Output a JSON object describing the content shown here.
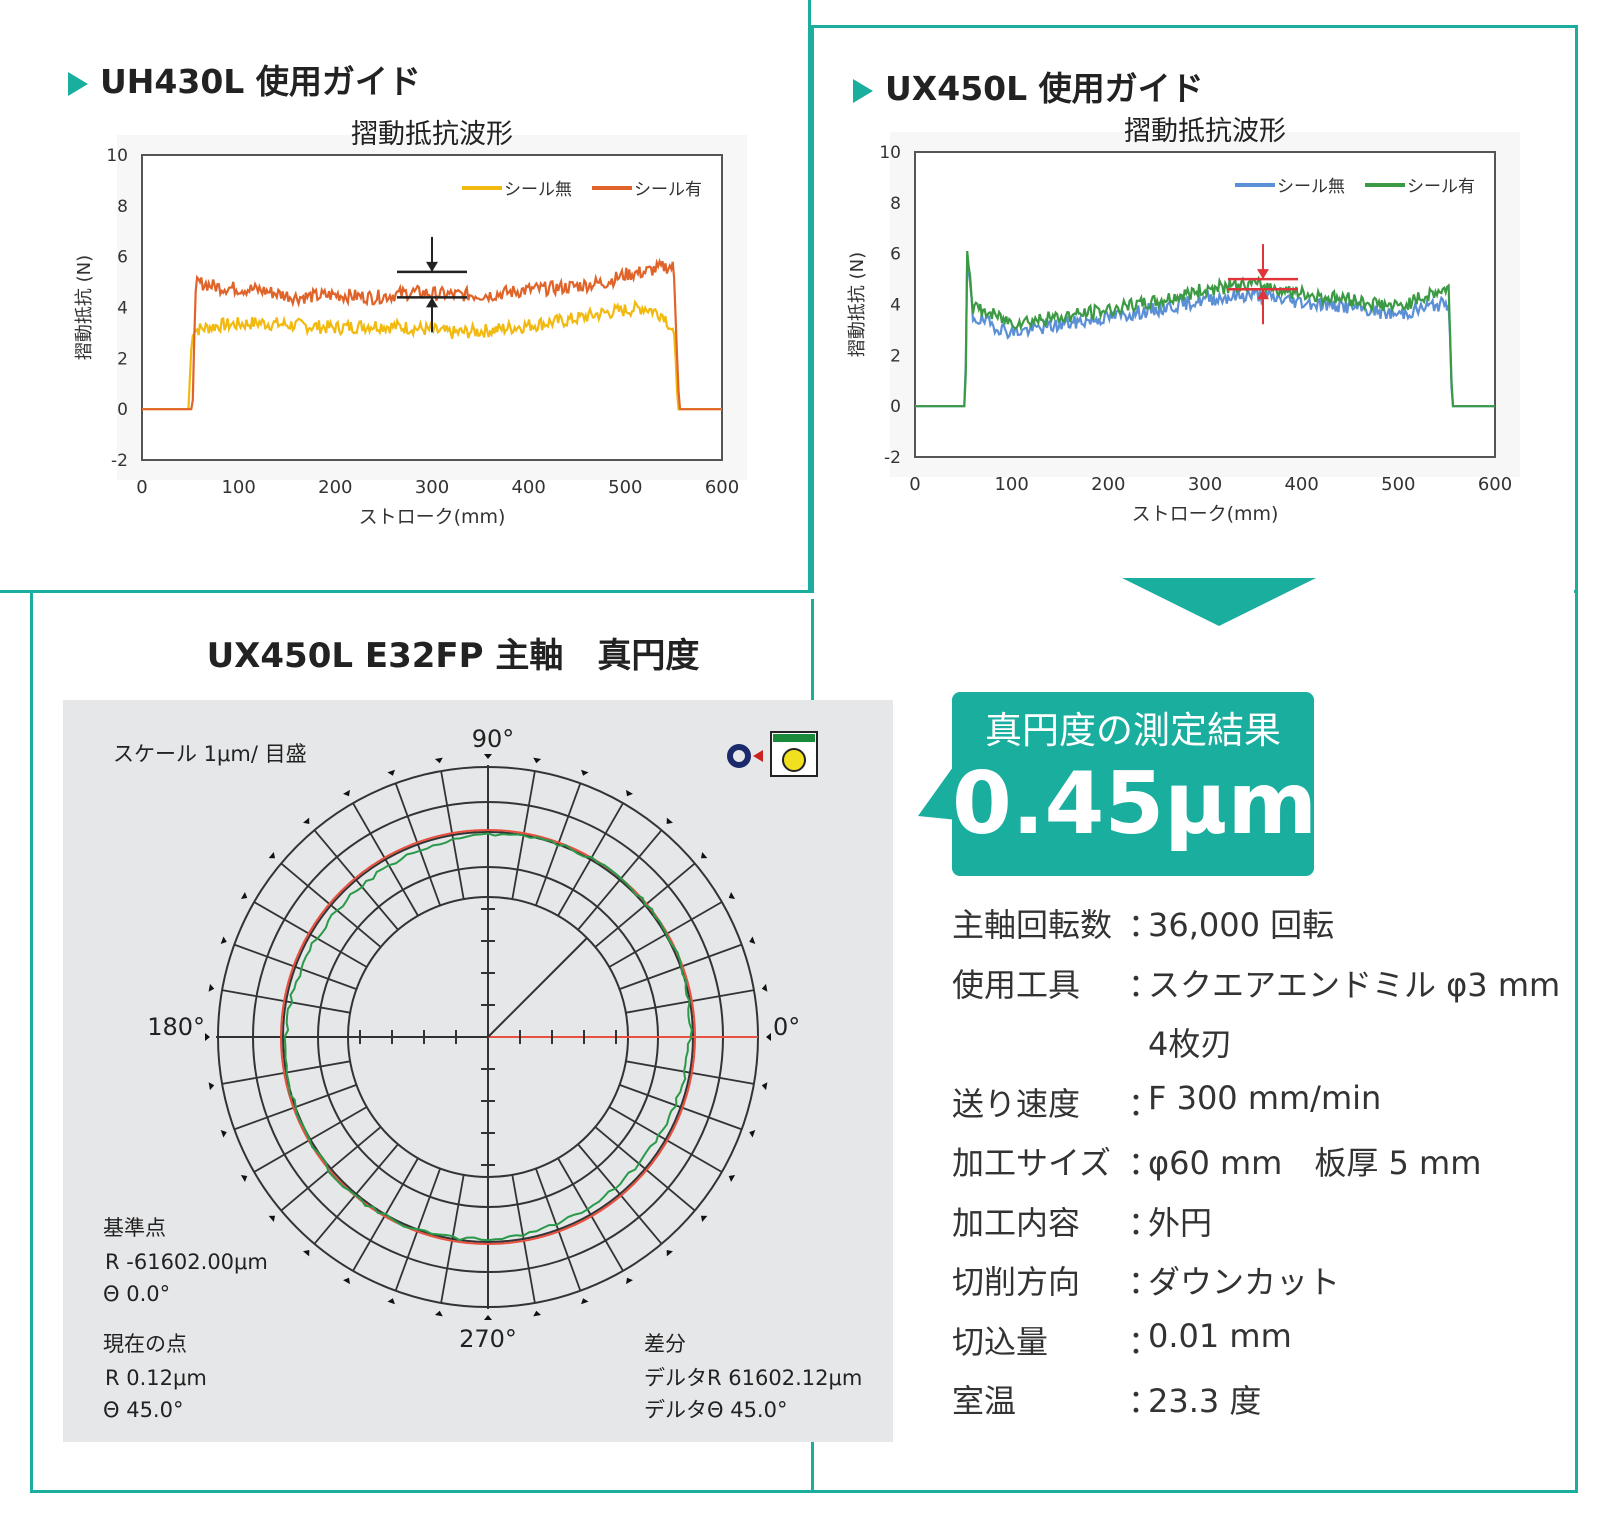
{
  "sections": {
    "uh430l_title": "UH430L 使用ガイド",
    "ux450l_title": "UX450L 使用ガイド",
    "polar_title": "UX450L E32FP 主軸　真円度"
  },
  "colors": {
    "accent": "#1aae9f",
    "uh_without_seal": "#f2b90f",
    "uh_with_seal": "#e0642a",
    "ux_without_seal": "#5b8fd6",
    "ux_with_seal": "#3c9a45",
    "polar_red": "#e85040",
    "polar_green": "#2a9a4a"
  },
  "chart_data": [
    {
      "type": "line",
      "title": "摺動抵抗波形",
      "xlabel": "ストローク(mm)",
      "ylabel": "摺動抵抗 (N)",
      "xlim": [
        0,
        600
      ],
      "ylim": [
        -2,
        10
      ],
      "xticks": [
        "0",
        "100",
        "200",
        "300",
        "400",
        "500",
        "600"
      ],
      "yticks": [
        "10",
        "8",
        "6",
        "4",
        "2",
        "0",
        "-2"
      ],
      "legend": "top-right",
      "series": [
        {
          "name": "シール無",
          "x": [
            0,
            48,
            52,
            80,
            120,
            160,
            200,
            240,
            280,
            320,
            360,
            400,
            440,
            480,
            520,
            540,
            550,
            555,
            600
          ],
          "values": [
            0,
            0,
            3.1,
            3.3,
            3.4,
            3.3,
            3.2,
            3.3,
            3.2,
            3.0,
            3.1,
            3.3,
            3.5,
            3.8,
            4.0,
            3.7,
            3.0,
            0,
            0
          ]
        },
        {
          "name": "シール有",
          "x": [
            0,
            52,
            56,
            80,
            120,
            160,
            200,
            240,
            280,
            320,
            360,
            400,
            440,
            480,
            500,
            520,
            540,
            550,
            556,
            600
          ],
          "values": [
            0,
            0,
            5.0,
            4.8,
            4.7,
            4.4,
            4.5,
            4.4,
            4.6,
            4.5,
            4.5,
            4.7,
            4.8,
            5.0,
            5.3,
            5.4,
            5.6,
            5.6,
            0,
            0
          ]
        }
      ]
    },
    {
      "type": "line",
      "title": "摺動抵抗波形",
      "xlabel": "ストローク(mm)",
      "ylabel": "摺動抵抗 (N)",
      "xlim": [
        0,
        600
      ],
      "ylim": [
        -2,
        10
      ],
      "xticks": [
        "0",
        "100",
        "200",
        "300",
        "400",
        "500",
        "600"
      ],
      "yticks": [
        "10",
        "8",
        "6",
        "4",
        "2",
        "0",
        "-2"
      ],
      "legend": "top-right",
      "series": [
        {
          "name": "シール無",
          "x": [
            0,
            52,
            54,
            60,
            100,
            150,
            200,
            250,
            300,
            350,
            380,
            400,
            450,
            500,
            540,
            552,
            556,
            600
          ],
          "values": [
            0,
            0,
            5.8,
            3.5,
            2.9,
            3.2,
            3.5,
            3.8,
            4.2,
            4.4,
            4.2,
            4.1,
            3.9,
            3.6,
            4.0,
            4.0,
            0,
            0
          ]
        },
        {
          "name": "シール有",
          "x": [
            0,
            52,
            54,
            60,
            100,
            150,
            200,
            250,
            300,
            350,
            380,
            400,
            450,
            500,
            540,
            552,
            556,
            600
          ],
          "values": [
            0,
            0,
            6.2,
            3.9,
            3.3,
            3.5,
            3.8,
            4.1,
            4.6,
            4.8,
            4.6,
            4.4,
            4.2,
            3.9,
            4.5,
            4.6,
            0,
            0
          ]
        }
      ]
    },
    {
      "type": "polar",
      "title": "UX450L E32FP 主軸　真円度",
      "angle_labels": [
        "90°",
        "180°",
        "0°",
        "270°"
      ],
      "scale_label": "スケール 1μm/ 目盛",
      "roundness_um": 0.45
    }
  ],
  "polar_info": {
    "ref_title": "基準点",
    "ref_r": "R -61602.00μm",
    "ref_theta": "Θ 0.0°",
    "cur_title": "現在の点",
    "cur_r": "R 0.12μm",
    "cur_theta": "Θ 45.0°",
    "diff_title": "差分",
    "diff_r": "デルタR 61602.12μm",
    "diff_theta": "デルタΘ 45.0°"
  },
  "result": {
    "label": "真円度の測定結果",
    "value": "0.45μm"
  },
  "specs": [
    {
      "key": "主軸回転数",
      "sep": "：",
      "value": "36,000 回転"
    },
    {
      "key": "使用工具",
      "sep": "：",
      "value": "スクエアエンドミル φ3 mm"
    },
    {
      "key": "",
      "sep": "",
      "value": "4枚刃"
    },
    {
      "key": "送り速度",
      "sep": "：",
      "value": "F 300 mm/min"
    },
    {
      "key": "加工サイズ",
      "sep": "：",
      "value": "φ60 mm　板厚 5 mm"
    },
    {
      "key": "加工内容",
      "sep": "：",
      "value": "外円"
    },
    {
      "key": "切削方向",
      "sep": "：",
      "value": "ダウンカット"
    },
    {
      "key": "切込量",
      "sep": "：",
      "value": "0.01 mm"
    },
    {
      "key": "室温",
      "sep": "：",
      "value": "23.3 度"
    }
  ]
}
